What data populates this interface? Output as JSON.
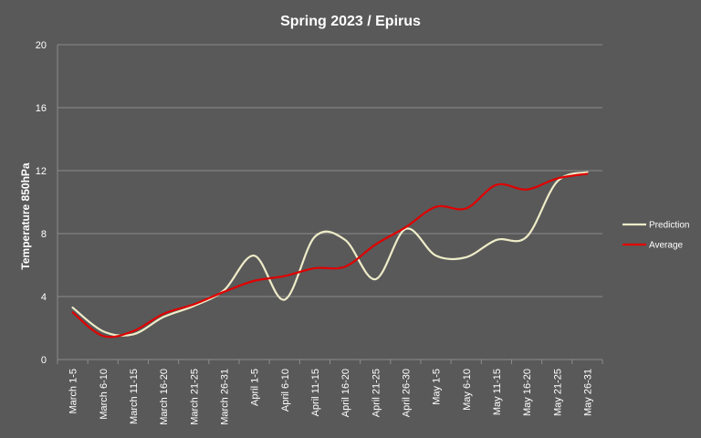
{
  "chart_data": {
    "type": "line",
    "title": "Spring 2023 / Epirus",
    "xlabel": "",
    "ylabel": "Temperature 850hPa",
    "ylim": [
      0,
      20
    ],
    "yticks": [
      0,
      4,
      8,
      12,
      16,
      20
    ],
    "grid": true,
    "legend_position": "right",
    "categories": [
      "March 1-5",
      "March 6-10",
      "March 11-15",
      "March 16-20",
      "March 21-25",
      "March 26-31",
      "April 1-5",
      "April 6-10",
      "April 11-15",
      "April 16-20",
      "April 21-25",
      "April 26-30",
      "May 1-5",
      "May 6-10",
      "May 11-15",
      "May 16-20",
      "May 21-25",
      "May 26-31"
    ],
    "series": [
      {
        "name": "Prediction",
        "color": "#eeecc8",
        "values": [
          3.3,
          1.8,
          1.6,
          2.7,
          3.4,
          4.4,
          6.6,
          3.8,
          7.8,
          7.6,
          5.1,
          8.3,
          6.6,
          6.5,
          7.6,
          7.8,
          11.3,
          11.9
        ]
      },
      {
        "name": "Average",
        "color": "#e00000",
        "values": [
          3.0,
          1.5,
          1.8,
          2.9,
          3.5,
          4.3,
          5.0,
          5.3,
          5.8,
          5.9,
          7.3,
          8.4,
          9.7,
          9.6,
          11.1,
          10.8,
          11.5,
          11.8
        ]
      }
    ]
  }
}
